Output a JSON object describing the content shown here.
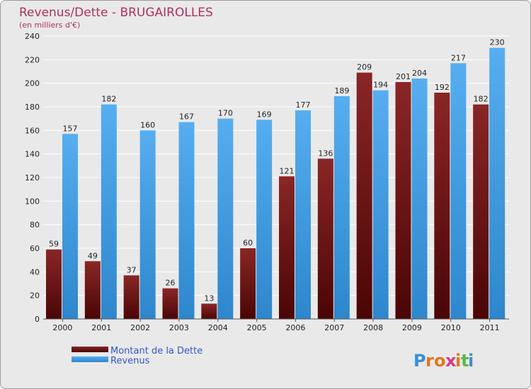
{
  "chart_data": {
    "type": "bar",
    "title": "Revenus/Dette - BRUGAIROLLES",
    "subtitle": "(en milliers d'€)",
    "categories": [
      "2000",
      "2001",
      "2002",
      "2003",
      "2004",
      "2005",
      "2006",
      "2007",
      "2008",
      "2009",
      "2010",
      "2011"
    ],
    "series": [
      {
        "name": "Montant de la Dette",
        "color": "#7a1515",
        "values": [
          59,
          49,
          37,
          26,
          13,
          60,
          121,
          136,
          209,
          201,
          192,
          182
        ]
      },
      {
        "name": "Revenus",
        "color": "#4aa3e6",
        "values": [
          157,
          182,
          160,
          167,
          170,
          169,
          177,
          189,
          194,
          204,
          217,
          230
        ]
      }
    ],
    "ylim": [
      0,
      240
    ],
    "yticks": [
      0,
      20,
      40,
      60,
      80,
      100,
      120,
      140,
      160,
      180,
      200,
      220,
      240
    ],
    "grid": true,
    "legend_position": "bottom-left"
  },
  "logo": {
    "text": "Proxiti"
  }
}
